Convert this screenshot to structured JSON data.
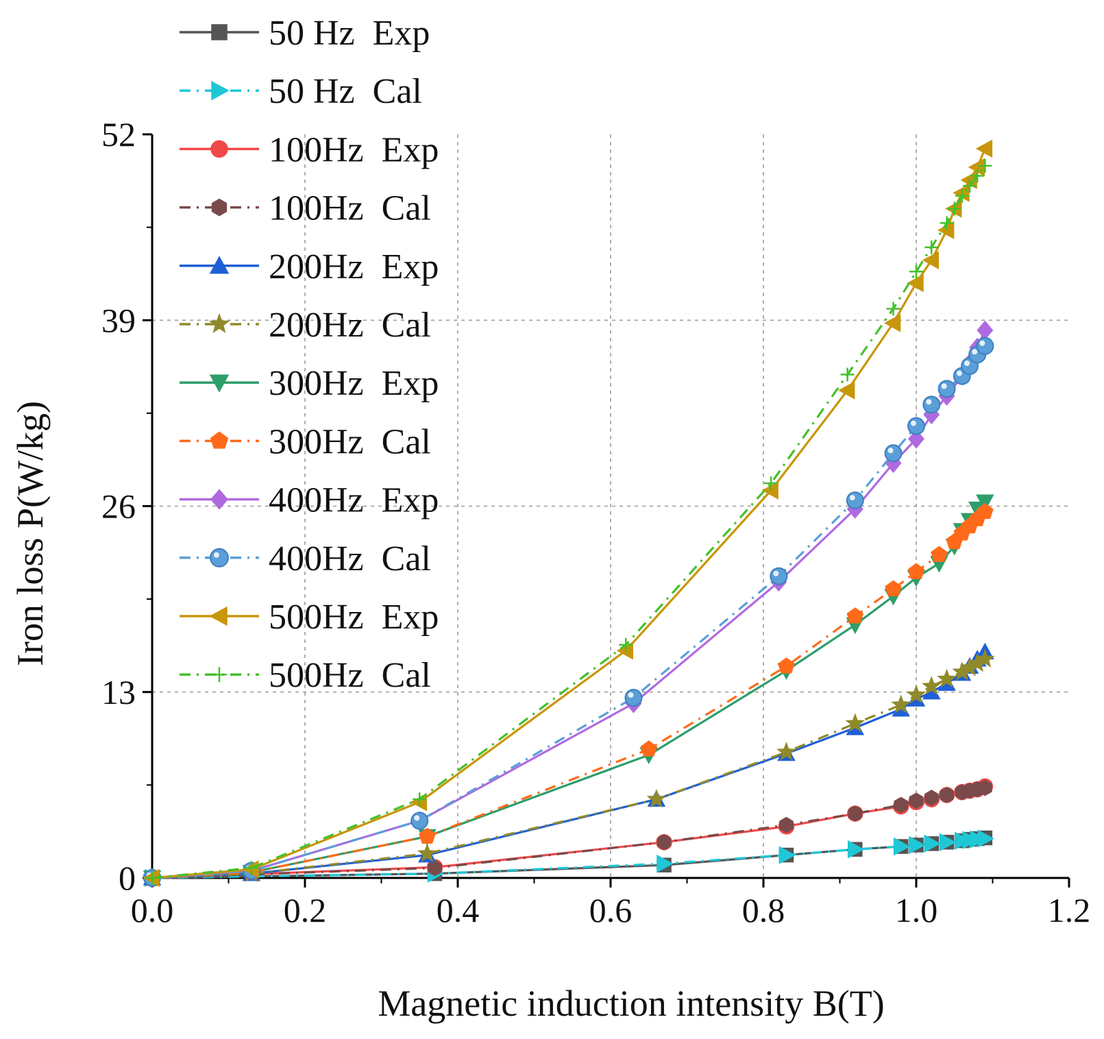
{
  "chart_data": {
    "type": "line",
    "title": "",
    "xlabel": "Magnetic induction intensity B(T)",
    "ylabel": "Iron loss P(W/kg)",
    "xlim": [
      0.0,
      1.2
    ],
    "ylim": [
      0,
      52
    ],
    "xticks": [
      0.0,
      0.2,
      0.4,
      0.6,
      0.8,
      1.0,
      1.2
    ],
    "xtick_labels": [
      "0.0",
      "0.2",
      "0.4",
      "0.6",
      "0.8",
      "1.0",
      "1.2"
    ],
    "yticks": [
      0,
      13,
      26,
      39,
      52
    ],
    "ytick_labels": [
      "0",
      "13",
      "26",
      "39",
      "52"
    ],
    "grid": true,
    "legend_position": "top-left",
    "series": [
      {
        "name": "50 Hz  Exp",
        "color": "#555555",
        "dash": "solid",
        "marker": "square",
        "x": [
          0.0,
          0.37,
          0.67,
          0.83,
          0.92,
          0.98,
          1.0,
          1.02,
          1.04,
          1.06,
          1.07,
          1.08,
          1.09
        ],
        "y": [
          0.0,
          0.3,
          0.9,
          1.6,
          2.0,
          2.2,
          2.3,
          2.4,
          2.5,
          2.6,
          2.7,
          2.75,
          2.8
        ]
      },
      {
        "name": "50 Hz  Cal",
        "color": "#1fc7d6",
        "dash": "dashdot",
        "marker": "triangle-right",
        "x": [
          0.0,
          0.37,
          0.67,
          0.83,
          0.92,
          0.98,
          1.0,
          1.02,
          1.04,
          1.06,
          1.07,
          1.08,
          1.09
        ],
        "y": [
          0.0,
          0.3,
          1.0,
          1.6,
          2.0,
          2.2,
          2.3,
          2.4,
          2.5,
          2.6,
          2.65,
          2.7,
          2.75
        ]
      },
      {
        "name": "100Hz  Exp",
        "color": "#f04848",
        "dash": "solid",
        "marker": "circle",
        "x": [
          0.0,
          0.37,
          0.67,
          0.83,
          0.92,
          0.98,
          1.0,
          1.02,
          1.04,
          1.06,
          1.07,
          1.08,
          1.09
        ],
        "y": [
          0.0,
          0.75,
          2.5,
          3.6,
          4.5,
          5.0,
          5.3,
          5.5,
          5.8,
          6.0,
          6.1,
          6.2,
          6.4
        ]
      },
      {
        "name": "100Hz  Cal",
        "color": "#7a4a4a",
        "dash": "dashdot",
        "marker": "hexagon",
        "x": [
          0.0,
          0.37,
          0.67,
          0.83,
          0.92,
          0.98,
          1.0,
          1.02,
          1.04,
          1.06,
          1.07,
          1.08,
          1.09
        ],
        "y": [
          0.0,
          0.7,
          2.5,
          3.7,
          4.5,
          5.1,
          5.4,
          5.6,
          5.8,
          6.0,
          6.1,
          6.2,
          6.3
        ]
      },
      {
        "name": "200Hz  Exp",
        "color": "#1f5fd6",
        "dash": "solid",
        "marker": "triangle-up",
        "x": [
          0.0,
          0.13,
          0.36,
          0.66,
          0.83,
          0.92,
          0.98,
          1.0,
          1.02,
          1.04,
          1.06,
          1.07,
          1.08,
          1.09
        ],
        "y": [
          0.0,
          0.3,
          1.6,
          5.5,
          8.7,
          10.5,
          11.8,
          12.5,
          13.0,
          13.6,
          14.3,
          14.8,
          15.3,
          15.8
        ]
      },
      {
        "name": "200Hz  Cal",
        "color": "#8f8a2a",
        "dash": "dashdot",
        "marker": "star",
        "x": [
          0.0,
          0.13,
          0.36,
          0.66,
          0.83,
          0.92,
          0.98,
          1.0,
          1.02,
          1.04,
          1.06,
          1.07,
          1.08,
          1.09
        ],
        "y": [
          0.0,
          0.3,
          1.7,
          5.5,
          8.8,
          10.8,
          12.1,
          12.8,
          13.4,
          13.9,
          14.4,
          14.7,
          15.0,
          15.3
        ]
      },
      {
        "name": "300Hz  Exp",
        "color": "#2e9e6a",
        "dash": "solid",
        "marker": "triangle-down",
        "x": [
          0.0,
          0.13,
          0.36,
          0.65,
          0.83,
          0.92,
          0.97,
          1.0,
          1.03,
          1.05,
          1.06,
          1.07,
          1.08,
          1.09
        ],
        "y": [
          0.0,
          0.4,
          2.9,
          8.6,
          14.5,
          17.7,
          19.7,
          21.0,
          22.0,
          23.2,
          24.3,
          25.0,
          25.8,
          26.3
        ]
      },
      {
        "name": "300Hz  Cal",
        "color": "#ff6a1a",
        "dash": "dashdot",
        "marker": "pentagon",
        "x": [
          0.0,
          0.13,
          0.36,
          0.65,
          0.83,
          0.92,
          0.97,
          1.0,
          1.03,
          1.05,
          1.06,
          1.07,
          1.08,
          1.09
        ],
        "y": [
          0.0,
          0.4,
          2.9,
          9.0,
          14.8,
          18.3,
          20.2,
          21.4,
          22.6,
          23.5,
          24.1,
          24.6,
          25.1,
          25.6
        ]
      },
      {
        "name": "400Hz  Exp",
        "color": "#b06ae0",
        "dash": "solid",
        "marker": "diamond",
        "x": [
          0.0,
          0.13,
          0.35,
          0.63,
          0.82,
          0.92,
          0.97,
          1.0,
          1.02,
          1.04,
          1.06,
          1.07,
          1.08,
          1.09
        ],
        "y": [
          0.0,
          0.5,
          4.0,
          12.2,
          20.7,
          25.8,
          29.0,
          30.7,
          32.4,
          33.7,
          35.1,
          36.0,
          37.1,
          38.3
        ]
      },
      {
        "name": "400Hz  Cal",
        "color": "#5a9fd8",
        "dash": "dashdot",
        "marker": "sphere",
        "x": [
          0.0,
          0.13,
          0.35,
          0.63,
          0.82,
          0.92,
          0.97,
          1.0,
          1.02,
          1.04,
          1.06,
          1.07,
          1.08,
          1.09
        ],
        "y": [
          0.0,
          0.5,
          4.0,
          12.6,
          21.1,
          26.4,
          29.7,
          31.6,
          33.1,
          34.2,
          35.1,
          35.8,
          36.6,
          37.2
        ]
      },
      {
        "name": "500Hz  Exp",
        "color": "#c8960a",
        "dash": "solid",
        "marker": "triangle-left",
        "x": [
          0.0,
          0.13,
          0.35,
          0.62,
          0.81,
          0.91,
          0.97,
          1.0,
          1.02,
          1.04,
          1.05,
          1.06,
          1.07,
          1.08,
          1.09
        ],
        "y": [
          0.0,
          0.6,
          5.3,
          15.9,
          27.1,
          34.1,
          38.8,
          41.6,
          43.2,
          45.3,
          46.8,
          47.9,
          48.8,
          49.7,
          51.0
        ]
      },
      {
        "name": "500Hz  Cal",
        "color": "#44c02a",
        "dash": "dashdot",
        "marker": "plus",
        "x": [
          0.0,
          0.13,
          0.35,
          0.62,
          0.81,
          0.91,
          0.97,
          1.0,
          1.02,
          1.04,
          1.05,
          1.06,
          1.07,
          1.08,
          1.09
        ],
        "y": [
          0.0,
          0.7,
          5.5,
          16.3,
          27.6,
          35.2,
          39.8,
          42.4,
          44.1,
          45.8,
          46.8,
          47.7,
          48.4,
          49.1,
          49.8
        ]
      }
    ]
  }
}
